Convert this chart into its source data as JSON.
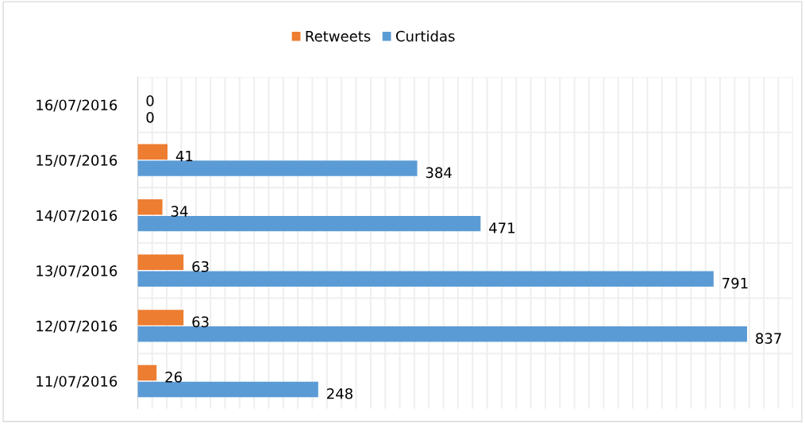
{
  "chart_data": {
    "type": "bar",
    "orientation": "horizontal",
    "categories": [
      "16/07/2016",
      "15/07/2016",
      "14/07/2016",
      "13/07/2016",
      "12/07/2016",
      "11/07/2016"
    ],
    "series": [
      {
        "name": "Retweets",
        "color": "#ed7d31",
        "values": [
          0,
          41,
          34,
          63,
          63,
          26
        ]
      },
      {
        "name": "Curtidas",
        "color": "#5b9bd5",
        "values": [
          0,
          384,
          471,
          791,
          837,
          248
        ]
      }
    ],
    "xlim": [
      0,
      900
    ],
    "xticks": [
      0,
      20,
      40,
      60,
      80,
      100,
      120,
      140,
      160,
      180,
      200,
      220,
      240,
      260,
      280,
      300,
      320,
      340,
      360,
      380,
      400,
      420,
      440,
      460,
      480,
      500,
      520,
      540,
      560,
      580,
      600,
      620,
      640,
      660,
      680,
      700,
      720,
      740,
      760,
      780,
      800,
      820,
      840,
      860,
      880,
      900
    ],
    "tick_labels": "y",
    "grid": true,
    "legend": "top",
    "data_labels": true
  }
}
